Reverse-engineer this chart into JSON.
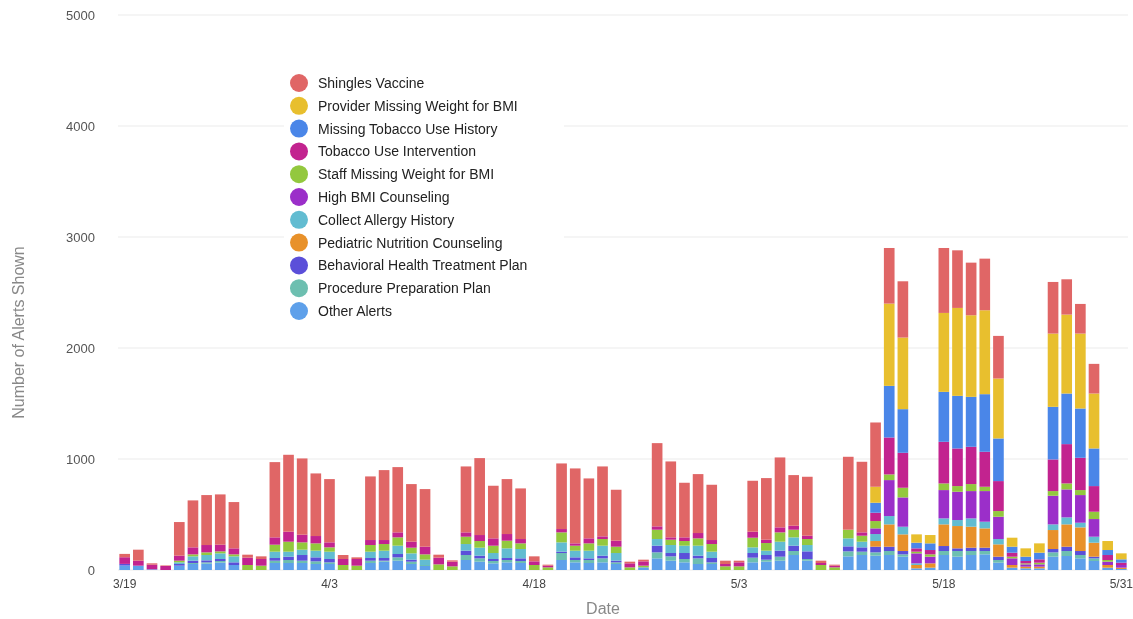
{
  "chart_data": {
    "type": "bar",
    "stacked": true,
    "xlabel": "Date",
    "ylabel": "Number of Alerts Shown",
    "categories": [
      "3/19",
      null,
      null,
      null,
      null,
      null,
      null,
      null,
      null,
      null,
      null,
      null,
      null,
      null,
      null,
      "4/3",
      null,
      null,
      null,
      null,
      null,
      null,
      null,
      null,
      null,
      null,
      null,
      null,
      null,
      null,
      "4/18",
      null,
      null,
      null,
      null,
      null,
      null,
      null,
      null,
      null,
      null,
      null,
      null,
      null,
      null,
      "5/3",
      null,
      null,
      null,
      null,
      null,
      null,
      null,
      null,
      null,
      null,
      null,
      null,
      null,
      null,
      "5/18",
      null,
      null,
      null,
      null,
      null,
      null,
      null,
      null,
      null,
      null,
      null,
      null,
      "5/31"
    ],
    "ylim": [
      0,
      5000
    ],
    "yticks": [
      0,
      1000,
      2000,
      3000,
      4000,
      5000
    ],
    "grid": "y",
    "legend": "top left",
    "series": [
      {
        "name": "Other Alerts",
        "color": "#5ea0ea",
        "values": [
          40,
          39,
          6,
          null,
          39,
          54,
          57,
          66,
          45,
          0,
          0,
          63,
          63,
          63,
          54,
          54,
          0,
          0,
          63,
          75,
          84,
          54,
          36,
          0,
          0,
          90,
          75,
          60,
          69,
          63,
          0,
          0,
          90,
          69,
          63,
          69,
          54,
          0,
          24,
          105,
          84,
          69,
          54,
          54,
          0,
          0,
          69,
          75,
          84,
          135,
          84,
          0,
          0,
          123,
          135,
          129,
          135,
          120,
          15,
          21,
          135,
          120,
          135,
          141,
          66,
          21,
          15,
          15,
          120,
          126,
          105,
          81,
          21,
          9
        ]
      },
      {
        "name": "Procedure Preparation Plan",
        "color": "#6dbfb0",
        "values": [
          0,
          0,
          0,
          0,
          0,
          9,
          12,
          15,
          0,
          0,
          0,
          21,
          27,
          21,
          24,
          15,
          0,
          0,
          21,
          9,
          30,
          21,
          9,
          0,
          0,
          45,
          30,
          21,
          21,
          18,
          0,
          0,
          63,
          21,
          27,
          36,
          15,
          0,
          0,
          54,
          39,
          30,
          51,
          15,
          0,
          0,
          42,
          18,
          36,
          36,
          15,
          0,
          0,
          45,
          30,
          30,
          36,
          21,
          0,
          0,
          36,
          51,
          36,
          30,
          24,
          0,
          0,
          0,
          39,
          45,
          30,
          24,
          0,
          0
        ]
      },
      {
        "name": "Behavioral Health Treatment Plan",
        "color": "#5b4fd9",
        "values": [
          15,
          0,
          0,
          0,
          15,
          21,
          18,
          18,
          24,
          0,
          0,
          24,
          30,
          51,
          36,
          30,
          0,
          0,
          24,
          24,
          30,
          18,
          0,
          0,
          0,
          39,
          24,
          18,
          18,
          24,
          0,
          0,
          12,
          24,
          15,
          24,
          15,
          0,
          0,
          60,
          30,
          54,
          24,
          39,
          0,
          0,
          42,
          42,
          54,
          48,
          69,
          0,
          0,
          45,
          39,
          51,
          39,
          30,
          0,
          0,
          45,
          24,
          30,
          30,
          30,
          0,
          0,
          0,
          30,
          39,
          36,
          15,
          0,
          0
        ]
      },
      {
        "name": "Pediatric Nutrition Counseling",
        "color": "#e8912a",
        "values": [
          0,
          0,
          0,
          0,
          0,
          0,
          0,
          0,
          0,
          0,
          0,
          0,
          0,
          0,
          0,
          0,
          0,
          0,
          0,
          0,
          0,
          0,
          0,
          0,
          0,
          0,
          0,
          0,
          0,
          0,
          0,
          0,
          0,
          0,
          0,
          0,
          0,
          0,
          0,
          0,
          0,
          0,
          0,
          0,
          0,
          0,
          0,
          0,
          0,
          0,
          0,
          0,
          0,
          0,
          0,
          51,
          201,
          150,
          30,
          39,
          195,
          201,
          189,
          174,
          111,
          24,
          15,
          15,
          171,
          201,
          213,
          126,
          24,
          12
        ]
      },
      {
        "name": "Collect Allergy History",
        "color": "#62bcd1",
        "values": [
          0,
          0,
          0,
          0,
          15,
          39,
          48,
          51,
          54,
          0,
          0,
          57,
          45,
          48,
          60,
          66,
          0,
          0,
          57,
          66,
          75,
          57,
          48,
          0,
          0,
          60,
          72,
          54,
          87,
          84,
          0,
          0,
          84,
          60,
          69,
          90,
          69,
          0,
          0,
          60,
          72,
          66,
          90,
          57,
          0,
          0,
          51,
          39,
          81,
          75,
          57,
          0,
          0,
          72,
          51,
          63,
          75,
          69,
          15,
          0,
          54,
          54,
          75,
          60,
          48,
          0,
          0,
          0,
          51,
          63,
          42,
          54,
          0,
          0
        ]
      },
      {
        "name": "High BMI Counseling",
        "color": "#9b2fc9",
        "values": [
          0,
          0,
          0,
          0,
          0,
          0,
          0,
          0,
          0,
          0,
          0,
          0,
          0,
          0,
          0,
          0,
          0,
          0,
          0,
          0,
          0,
          0,
          0,
          0,
          0,
          0,
          0,
          0,
          0,
          0,
          0,
          0,
          0,
          0,
          0,
          0,
          0,
          0,
          0,
          0,
          0,
          0,
          0,
          0,
          0,
          0,
          0,
          0,
          0,
          0,
          0,
          0,
          0,
          0,
          0,
          51,
          324,
          264,
          90,
          60,
          255,
          255,
          246,
          276,
          201,
          60,
          21,
          21,
          258,
          252,
          249,
          159,
          30,
          24
        ]
      },
      {
        "name": "Staff Missing Weight for BMI",
        "color": "#93c83e",
        "values": [
          0,
          0,
          0,
          0,
          15,
          18,
          24,
          18,
          18,
          45,
          39,
          63,
          90,
          66,
          66,
          39,
          45,
          39,
          60,
          60,
          75,
          51,
          48,
          51,
          33,
          66,
          60,
          66,
          69,
          51,
          45,
          24,
          90,
          45,
          66,
          60,
          57,
          24,
          15,
          84,
          48,
          42,
          66,
          69,
          33,
          33,
          87,
          69,
          84,
          69,
          54,
          45,
          24,
          78,
          54,
          66,
          51,
          87,
          15,
          21,
          60,
          51,
          63,
          39,
          51,
          15,
          9,
          15,
          42,
          54,
          45,
          66,
          15,
          0
        ]
      },
      {
        "name": "Tobacco Use Intervention",
        "color": "#c2238f",
        "values": [
          60,
          45,
          42,
          36,
          45,
          63,
          66,
          60,
          54,
          66,
          60,
          66,
          90,
          69,
          66,
          45,
          54,
          60,
          45,
          36,
          45,
          54,
          69,
          60,
          42,
          39,
          54,
          66,
          60,
          39,
          33,
          15,
          30,
          21,
          45,
          24,
          54,
          36,
          39,
          30,
          21,
          33,
          48,
          36,
          21,
          36,
          54,
          30,
          45,
          36,
          30,
          18,
          15,
          0,
          30,
          75,
          333,
          315,
          30,
          39,
          375,
          339,
          336,
          315,
          270,
          36,
          21,
          30,
          285,
          354,
          291,
          231,
          45,
          21
        ]
      },
      {
        "name": "Missing Tobacco Use History",
        "color": "#4a86e8",
        "values": [
          0,
          0,
          0,
          0,
          0,
          0,
          0,
          0,
          0,
          0,
          0,
          0,
          0,
          0,
          0,
          0,
          0,
          0,
          0,
          0,
          0,
          0,
          0,
          0,
          0,
          0,
          0,
          0,
          0,
          0,
          0,
          0,
          0,
          0,
          0,
          0,
          0,
          0,
          0,
          0,
          0,
          0,
          0,
          0,
          0,
          0,
          0,
          0,
          0,
          0,
          0,
          0,
          0,
          0,
          0,
          90,
          465,
          393,
          51,
          60,
          450,
          474,
          450,
          519,
          384,
          54,
          39,
          60,
          474,
          456,
          444,
          339,
          45,
          30
        ]
      },
      {
        "name": "Provider Missing Weight for BMI",
        "color": "#e8bf2e",
        "values": [
          0,
          0,
          0,
          0,
          0,
          0,
          0,
          0,
          0,
          0,
          0,
          0,
          0,
          0,
          0,
          0,
          0,
          0,
          0,
          0,
          0,
          0,
          0,
          0,
          0,
          0,
          0,
          0,
          0,
          0,
          0,
          0,
          0,
          0,
          0,
          0,
          0,
          0,
          0,
          0,
          0,
          0,
          0,
          0,
          0,
          0,
          0,
          0,
          0,
          0,
          0,
          0,
          0,
          0,
          0,
          144,
          741,
          645,
          75,
          75,
          711,
          792,
          735,
          756,
          540,
          81,
          75,
          84,
          660,
          711,
          675,
          495,
          81,
          54
        ]
      },
      {
        "name": "Shingles Vaccine",
        "color": "#e06666",
        "values": [
          30,
          99,
          12,
          5,
          303,
          423,
          450,
          453,
          417,
          27,
          24,
          678,
          693,
          687,
          564,
          570,
          36,
          15,
          573,
          630,
          588,
          519,
          519,
          27,
          12,
          594,
          693,
          474,
          495,
          456,
          45,
          9,
          591,
          675,
          540,
          630,
          459,
          15,
          15,
          750,
          684,
          492,
          531,
          498,
          30,
          15,
          459,
          555,
          630,
          456,
          531,
          21,
          9,
          657,
          636,
          579,
          501,
          507,
          0,
          0,
          585,
          519,
          474,
          465,
          384,
          0,
          0,
          0,
          465,
          318,
          267,
          267,
          0,
          0
        ]
      }
    ]
  }
}
